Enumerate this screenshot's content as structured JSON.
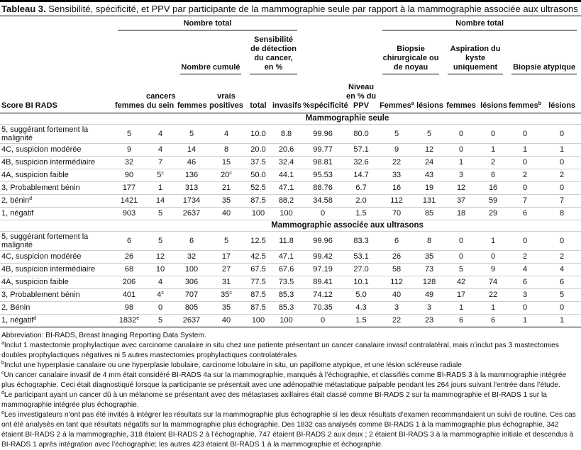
{
  "title": {
    "label": "Tableau 3.",
    "text": "Sensibilité, spécificité, et PPV par participante de la mammographie seule par rapport à la mammographie associée aux ultrasons"
  },
  "header": {
    "groups": [
      "Nombre total",
      "Nombre total"
    ],
    "subgroups": [
      "Nombre cumulé",
      "Sensibilité de détection du cancer, en %",
      "Biopsie chirurgicale ou de noyau",
      "Aspiration du kyste uniquement",
      "Biopsie atypique"
    ],
    "columns": [
      "Score BI RADS",
      "femmes",
      "cancers du sein",
      "femmes",
      "vrais positives",
      "total",
      "invasifs",
      "%spécificité",
      "Niveau en % du PPV",
      {
        "text": "Femmes",
        "sup": "a"
      },
      "lésions",
      "femmes",
      "lésions",
      {
        "text": "femmes",
        "sup": "b"
      },
      "lésions"
    ]
  },
  "sections": [
    {
      "title": "Mammographie seule",
      "rows": [
        [
          "5, suggérant fortement la malignité",
          "5",
          "4",
          "5",
          "4",
          "10.0",
          "8.8",
          "99.96",
          "80.0",
          "5",
          "5",
          "0",
          "0",
          "0",
          "0"
        ],
        [
          "4C, suspicion modérée",
          "9",
          "4",
          "14",
          "8",
          "20.0",
          "20.6",
          "99.77",
          "57.1",
          "9",
          "12",
          "0",
          "1",
          "1",
          "1"
        ],
        [
          "4B, suspicion intermédiaire",
          "32",
          "7",
          "46",
          "15",
          "37.5",
          "32.4",
          "98.81",
          "32.6",
          "22",
          "24",
          "1",
          "2",
          "0",
          "0"
        ],
        [
          "4A, suspicion faible",
          "90",
          {
            "text": "5",
            "sup": "c"
          },
          "136",
          {
            "text": "20",
            "sup": "c"
          },
          "50.0",
          "44.1",
          "95.53",
          "14.7",
          "33",
          "43",
          "3",
          "6",
          "2",
          "2"
        ],
        [
          "3, Probablement bénin",
          "177",
          "1",
          "313",
          "21",
          "52.5",
          "47.1",
          "88.76",
          "6.7",
          "16",
          "19",
          "12",
          "16",
          "0",
          "0"
        ],
        [
          {
            "text": "2, bénin",
            "sup": "d"
          },
          "1421",
          "14",
          "1734",
          "35",
          "87.5",
          "88.2",
          "34.58",
          "2.0",
          "112",
          "131",
          "37",
          "59",
          "7",
          "7"
        ],
        [
          "1, négatif",
          "903",
          "5",
          "2637",
          "40",
          "100",
          "100",
          "0",
          "1.5",
          "70",
          "85",
          "18",
          "29",
          "6",
          "8"
        ]
      ]
    },
    {
      "title": "Mammographie associée aux ultrasons",
      "rows": [
        [
          "5, suggérant fortement la malignité",
          "6",
          "5",
          "6",
          "5",
          "12.5",
          "11.8",
          "99.96",
          "83.3",
          "6",
          "8",
          "0",
          "1",
          "0",
          "0"
        ],
        [
          "4C, suspicion modérée",
          "26",
          "12",
          "32",
          "17",
          "42.5",
          "47.1",
          "99.42",
          "53.1",
          "26",
          "35",
          "0",
          "0",
          "2",
          "2"
        ],
        [
          "4B, suspicion intermédiaire",
          "68",
          "10",
          "100",
          "27",
          "67.5",
          "67.6",
          "97.19",
          "27.0",
          "58",
          "73",
          "5",
          "9",
          "4",
          "4"
        ],
        [
          "4A, suspicion faible",
          "206",
          "4",
          "306",
          "31",
          "77.5",
          "73.5",
          "89.41",
          "10.1",
          "112",
          "128",
          "42",
          "74",
          "6",
          "6"
        ],
        [
          "3, Probablement bénin",
          "401",
          {
            "text": "4",
            "sup": "c"
          },
          "707",
          {
            "text": "35",
            "sup": "c"
          },
          "87.5",
          "85.3",
          "74.12",
          "5.0",
          "40",
          "49",
          "17",
          "22",
          "3",
          "5"
        ],
        [
          "2, Bénin",
          "98",
          "0",
          "805",
          "35",
          "87.5",
          "85.3",
          "70.35",
          "4.3",
          "3",
          "3",
          "1",
          "1",
          "0",
          "0"
        ],
        [
          {
            "text": "1, négatif",
            "sup": "d"
          },
          {
            "text": "1832",
            "sup": "e"
          },
          "5",
          "2637",
          "40",
          "100",
          "100",
          "0",
          "1.5",
          "22",
          "23",
          "6",
          "6",
          "1",
          "1"
        ]
      ]
    }
  ],
  "footnotes": [
    "Abbreviation: BI-RADS, Breast Imaging Reporting Data System.",
    {
      "sup": "a",
      "text": "Inclut 1 mastectomie prophylactique avec carcinome canalaire in situ chez une patiente présentant un cancer canalaire invasif contralatéral, mais n’inclut pas 3 mastectomies doubles prophylactiques négatives ni 5 autres mastectomies prophylactiques controlatérales"
    },
    {
      "sup": "b",
      "text": "Inclut une hyperplasie canalaire ou une hyperplasie lobulaire, carcinome lobulaire in situ, un papillome atypique, et une lésion scléreuse radiale"
    },
    {
      "sup": "c",
      "text": "Un cancer canalaire invasif de 4 mm était considéré BI-RADS 4a sur la mammographie, manqués à l’échographie, et classifiés comme BI-RADS 3 à la mammographie intégrée plus échographie. Ceci était diagnostiqué lorsque la participante se présentait avec une adénopathie métastatique palpable pendant les 264 jours suivant l’entrée dans l’étude."
    },
    {
      "sup": "d",
      "text": "Le participant ayant un cancer dû à un mélanome se présentant avec des métastases axillaires était classé comme BI-RADS 2 sur la mammographie et BI-RADS 1 sur la mammographie intégrée plus échographie."
    },
    {
      "sup": "e",
      "text": "Les investigateurs n’ont pas été invités à intégrer les résultats sur la mammographie plus échographie si les deux résultats d’examen recommandaient un suivi de routine. Ces cas ont été analysés en tant que résultats négatifs sur la mammographie plus échographie. Des 1832 cas analysés comme BI-RADS 1 à la mammographie plus échographie, 342 étaient BI-RADS 2 à la mammographie, 318 étaient BI-RADS 2 à l’échographie, 747 étaient BI-RADS 2 aux deux ; 2 étaient BI-RADS 3 à la mammographie initiale et descendus à BI-RADS 1 après intégration avec l’échographie; les autres 423 étaient BI-RADS 1 à la mammographie et échographie."
    }
  ]
}
